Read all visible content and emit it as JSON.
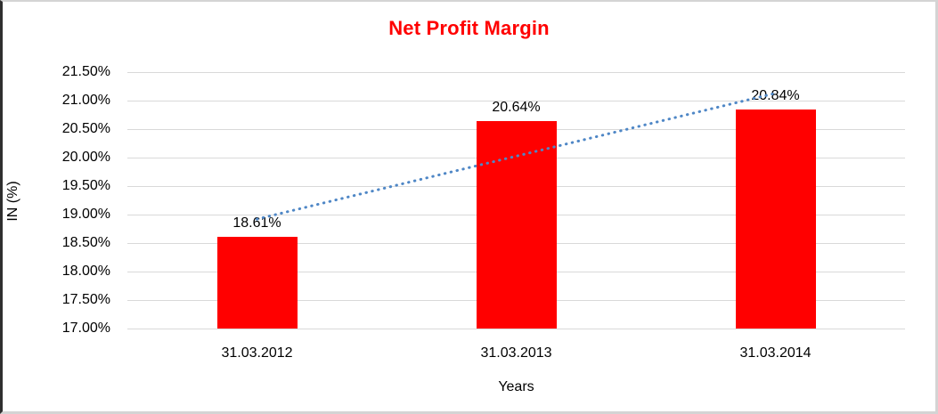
{
  "chart_data": {
    "type": "bar",
    "title": "Net Profit Margin",
    "xlabel": "Years",
    "ylabel": "IN (%)",
    "categories": [
      "31.03.2012",
      "31.03.2013",
      "31.03.2014"
    ],
    "values": [
      18.61,
      20.64,
      20.84
    ],
    "data_labels": [
      "18.61%",
      "20.64%",
      "20.84%"
    ],
    "ylim": [
      17.0,
      21.5
    ],
    "ytick_step": 0.5,
    "yticks": [
      17.0,
      17.5,
      18.0,
      18.5,
      19.0,
      19.5,
      20.0,
      20.5,
      21.0,
      21.5
    ],
    "ytick_labels": [
      "17.00%",
      "17.50%",
      "18.00%",
      "18.50%",
      "19.00%",
      "19.50%",
      "20.00%",
      "20.50%",
      "21.00%",
      "21.50%"
    ],
    "grid": "horizontal",
    "legend": "none",
    "trendline": {
      "type": "linear",
      "style": "dotted",
      "y_start": 18.92,
      "y_end": 21.13
    },
    "colors": {
      "bar": "#ff0000",
      "title": "#ff0000",
      "trendline": "#4f87c6",
      "gridline": "#d9d9d9",
      "text": "#000000"
    }
  }
}
